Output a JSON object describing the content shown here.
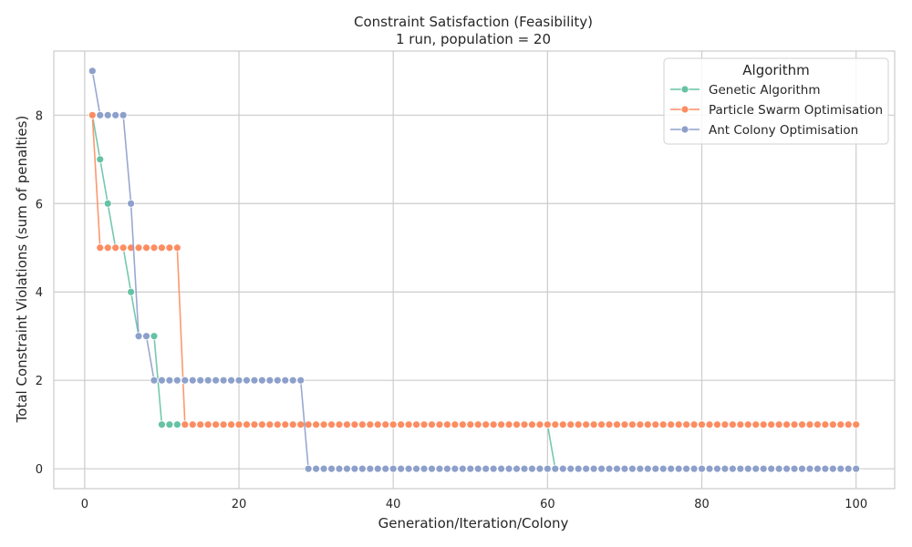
{
  "chart_data": {
    "type": "line",
    "title": "Constraint Satisfaction (Feasibility)",
    "subtitle": "1 run, population = 20",
    "xlabel": "Generation/Iteration/Colony",
    "ylabel": "Total Constraint Violations (sum of penalties)",
    "xlim": [
      -4,
      105
    ],
    "ylim": [
      -0.45,
      9.45
    ],
    "xticks": [
      0,
      20,
      40,
      60,
      80,
      100
    ],
    "yticks": [
      0,
      2,
      4,
      6,
      8
    ],
    "grid": true,
    "legend": {
      "title": "Algorithm",
      "placement": "top-right"
    },
    "x": [
      1,
      2,
      3,
      4,
      5,
      6,
      7,
      8,
      9,
      10,
      11,
      12,
      13,
      14,
      15,
      16,
      17,
      18,
      19,
      20,
      21,
      22,
      23,
      24,
      25,
      26,
      27,
      28,
      29,
      30,
      31,
      32,
      33,
      34,
      35,
      36,
      37,
      38,
      39,
      40,
      41,
      42,
      43,
      44,
      45,
      46,
      47,
      48,
      49,
      50,
      51,
      52,
      53,
      54,
      55,
      56,
      57,
      58,
      59,
      60,
      61,
      62,
      63,
      64,
      65,
      66,
      67,
      68,
      69,
      70,
      71,
      72,
      73,
      74,
      75,
      76,
      77,
      78,
      79,
      80,
      81,
      82,
      83,
      84,
      85,
      86,
      87,
      88,
      89,
      90,
      91,
      92,
      93,
      94,
      95,
      96,
      97,
      98,
      99,
      100
    ],
    "series": [
      {
        "name": "Genetic Algorithm",
        "color": "#66c2a5",
        "values": [
          8,
          7,
          6,
          5,
          5,
          4,
          3,
          3,
          3,
          1,
          1,
          1,
          1,
          1,
          1,
          1,
          1,
          1,
          1,
          1,
          1,
          1,
          1,
          1,
          1,
          1,
          1,
          1,
          1,
          1,
          1,
          1,
          1,
          1,
          1,
          1,
          1,
          1,
          1,
          1,
          1,
          1,
          1,
          1,
          1,
          1,
          1,
          1,
          1,
          1,
          1,
          1,
          1,
          1,
          1,
          1,
          1,
          1,
          1,
          1,
          0,
          0,
          0,
          0,
          0,
          0,
          0,
          0,
          0,
          0,
          0,
          0,
          0,
          0,
          0,
          0,
          0,
          0,
          0,
          0,
          0,
          0,
          0,
          0,
          0,
          0,
          0,
          0,
          0,
          0,
          0,
          0,
          0,
          0,
          0,
          0,
          0,
          0,
          0,
          0
        ]
      },
      {
        "name": "Particle Swarm Optimisation",
        "color": "#fc8d62",
        "values": [
          8,
          5,
          5,
          5,
          5,
          5,
          5,
          5,
          5,
          5,
          5,
          5,
          1,
          1,
          1,
          1,
          1,
          1,
          1,
          1,
          1,
          1,
          1,
          1,
          1,
          1,
          1,
          1,
          1,
          1,
          1,
          1,
          1,
          1,
          1,
          1,
          1,
          1,
          1,
          1,
          1,
          1,
          1,
          1,
          1,
          1,
          1,
          1,
          1,
          1,
          1,
          1,
          1,
          1,
          1,
          1,
          1,
          1,
          1,
          1,
          1,
          1,
          1,
          1,
          1,
          1,
          1,
          1,
          1,
          1,
          1,
          1,
          1,
          1,
          1,
          1,
          1,
          1,
          1,
          1,
          1,
          1,
          1,
          1,
          1,
          1,
          1,
          1,
          1,
          1,
          1,
          1,
          1,
          1,
          1,
          1,
          1,
          1,
          1,
          1
        ]
      },
      {
        "name": "Ant Colony Optimisation",
        "color": "#8da0cb",
        "values": [
          9,
          8,
          8,
          8,
          8,
          6,
          3,
          3,
          2,
          2,
          2,
          2,
          2,
          2,
          2,
          2,
          2,
          2,
          2,
          2,
          2,
          2,
          2,
          2,
          2,
          2,
          2,
          2,
          0,
          0,
          0,
          0,
          0,
          0,
          0,
          0,
          0,
          0,
          0,
          0,
          0,
          0,
          0,
          0,
          0,
          0,
          0,
          0,
          0,
          0,
          0,
          0,
          0,
          0,
          0,
          0,
          0,
          0,
          0,
          0,
          0,
          0,
          0,
          0,
          0,
          0,
          0,
          0,
          0,
          0,
          0,
          0,
          0,
          0,
          0,
          0,
          0,
          0,
          0,
          0,
          0,
          0,
          0,
          0,
          0,
          0,
          0,
          0,
          0,
          0,
          0,
          0,
          0,
          0,
          0,
          0,
          0,
          0,
          0,
          0
        ]
      }
    ]
  }
}
